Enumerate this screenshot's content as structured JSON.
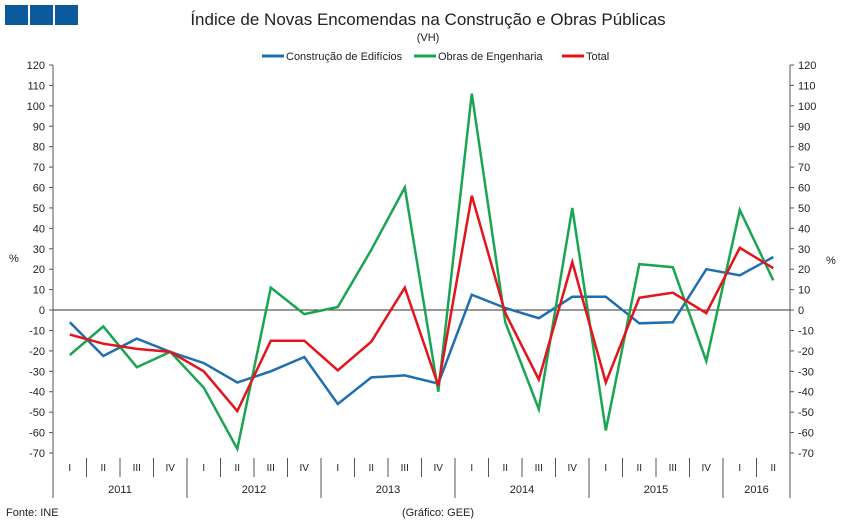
{
  "logo_text": "GEE",
  "chart_data": {
    "type": "line",
    "title": "Índice de Novas Encomendas na Construção e Obras Públicas",
    "subtitle": "(VH)",
    "ylabel_left": "%",
    "ylabel_right": "%",
    "ylim": [
      -70,
      120
    ],
    "yticks": [
      120,
      110,
      100,
      90,
      80,
      70,
      60,
      50,
      40,
      30,
      20,
      10,
      0,
      -10,
      -20,
      -30,
      -40,
      -50,
      -60,
      -70
    ],
    "legend_position": "top-center",
    "quarters": [
      "I",
      "II",
      "III",
      "IV",
      "I",
      "II",
      "III",
      "IV",
      "I",
      "II",
      "III",
      "IV",
      "I",
      "II",
      "III",
      "IV",
      "I",
      "II",
      "III",
      "IV",
      "I",
      "II"
    ],
    "years": [
      {
        "label": "2011",
        "count": 4
      },
      {
        "label": "2012",
        "count": 4
      },
      {
        "label": "2013",
        "count": 4
      },
      {
        "label": "2014",
        "count": 4
      },
      {
        "label": "2015",
        "count": 4
      },
      {
        "label": "2016",
        "count": 2
      }
    ],
    "series": [
      {
        "name": "Construção de Edifícios",
        "color": "#1f6eb0",
        "values": [
          -6,
          -22.5,
          -14,
          -20.5,
          -26,
          -35.5,
          -30,
          -23,
          -46,
          -33,
          -32,
          -36,
          7.5,
          1,
          -4,
          6.5,
          6.5,
          -6.5,
          -6,
          20,
          17,
          26
        ]
      },
      {
        "name": "Obras de Engenharia",
        "color": "#1aa552",
        "values": [
          -22,
          -8,
          -28,
          -20.5,
          -38,
          -68,
          11,
          -2,
          1.5,
          29.5,
          60,
          -40,
          106,
          -6,
          -48.5,
          50,
          -59,
          22.5,
          21,
          -25,
          49,
          14.5
        ]
      },
      {
        "name": "Total",
        "color": "#e3141b",
        "values": [
          -12,
          -16.5,
          -19,
          -20.5,
          -30,
          -49.5,
          -15,
          -15,
          -29.5,
          -15.5,
          11,
          -37,
          56,
          -1.5,
          -34,
          23.5,
          -35.5,
          6,
          8.5,
          -1.5,
          30.5,
          20.5
        ]
      }
    ]
  },
  "footer": {
    "source": "Fonte: INE",
    "credit": "(Gráfico: GEE)"
  }
}
